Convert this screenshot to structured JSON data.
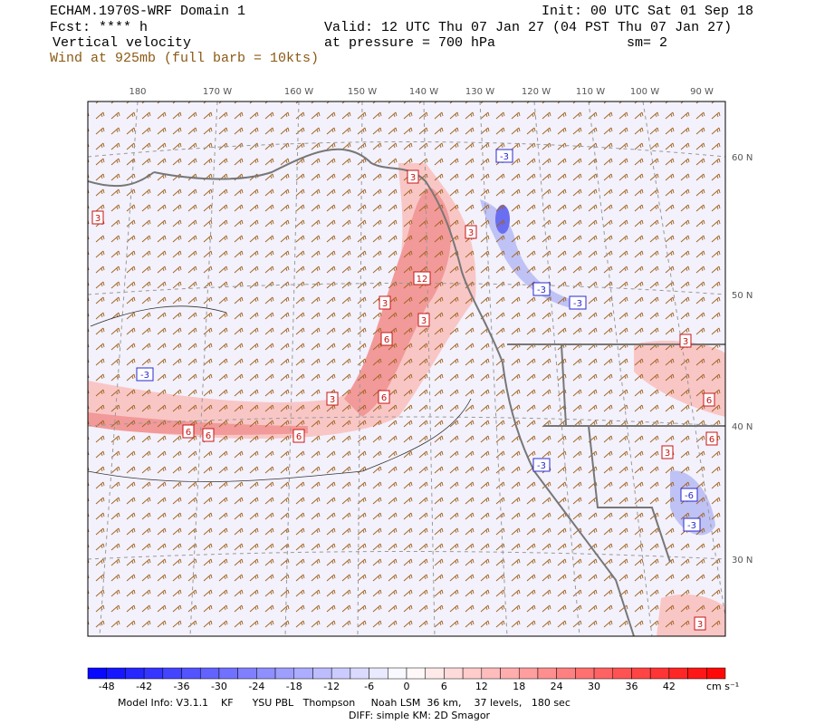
{
  "header": {
    "model": "ECHAM.1970S-WRF Domain 1",
    "init": "Init: 00 UTC Sat 01 Sep 18",
    "fcst": "Fcst: **** h",
    "valid": "Valid: 12 UTC Thu 07 Jan 27 (04 PST Thu 07 Jan 27)",
    "field": "Vertical velocity",
    "pressure": "at pressure =  700 hPa",
    "smooth": "sm= 2",
    "wind": "Wind at 925mb (full barb = 10kts)"
  },
  "longitude_labels": [
    "180",
    "170 W",
    "160 W",
    "150 W",
    "140 W",
    "130 W",
    "120 W",
    "110 W",
    "100 W",
    "90 W"
  ],
  "latitude_labels": [
    "60 N",
    "50 N",
    "40 N",
    "30 N"
  ],
  "contour_labels": [
    3,
    3,
    3,
    12,
    3,
    3,
    6,
    3,
    6,
    6,
    6,
    6,
    -3,
    -3,
    -3,
    -3,
    -3,
    3,
    6,
    3,
    6,
    -6,
    -3,
    3
  ],
  "colorbar": {
    "ticks": [
      -48,
      -42,
      -36,
      -30,
      -24,
      -18,
      -12,
      -6,
      0,
      6,
      12,
      18,
      24,
      30,
      36,
      42
    ],
    "range": [
      -51,
      51
    ],
    "step": 3,
    "unit": "cm s⁻¹",
    "colors": {
      "min": "#0000ff",
      "mid": "#ffffff",
      "max": "#ff0000"
    }
  },
  "footer": {
    "model_info": "Model Info: V3.1.1    KF      YSU PBL   Thompson     Noah LSM  36 km,    37 levels,   180 sec",
    "diff": "DIFF: simple KM: 2D Smagor"
  }
}
